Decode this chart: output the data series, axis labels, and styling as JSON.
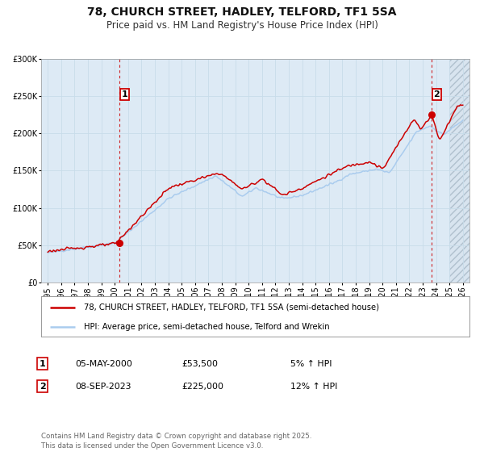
{
  "title": "78, CHURCH STREET, HADLEY, TELFORD, TF1 5SA",
  "subtitle": "Price paid vs. HM Land Registry's House Price Index (HPI)",
  "red_label": "78, CHURCH STREET, HADLEY, TELFORD, TF1 5SA (semi-detached house)",
  "blue_label": "HPI: Average price, semi-detached house, Telford and Wrekin",
  "annotation1_date": "05-MAY-2000",
  "annotation1_price": "£53,500",
  "annotation1_hpi": "5% ↑ HPI",
  "annotation2_date": "08-SEP-2023",
  "annotation2_price": "£225,000",
  "annotation2_hpi": "12% ↑ HPI",
  "footnote": "Contains HM Land Registry data © Crown copyright and database right 2025.\nThis data is licensed under the Open Government Licence v3.0.",
  "ylim": [
    0,
    300000
  ],
  "yticks": [
    0,
    50000,
    100000,
    150000,
    200000,
    250000,
    300000
  ],
  "xlim_start": 1994.5,
  "xlim_end": 2026.5,
  "xticks": [
    1995,
    1996,
    1997,
    1998,
    1999,
    2000,
    2001,
    2002,
    2003,
    2004,
    2005,
    2006,
    2007,
    2008,
    2009,
    2010,
    2011,
    2012,
    2013,
    2014,
    2015,
    2016,
    2017,
    2018,
    2019,
    2020,
    2021,
    2022,
    2023,
    2024,
    2025,
    2026
  ],
  "red_color": "#cc0000",
  "blue_color": "#aaccee",
  "grid_color": "#c8dcea",
  "background_color": "#ddeaf5",
  "hatch_color": "#c0ccd8",
  "vline_color": "#cc0000",
  "marker_color": "#cc0000",
  "annotation_box_color": "#cc0000",
  "anno1_x": 2000.35,
  "anno1_y": 53500,
  "anno2_x": 2023.67,
  "anno2_y": 225000,
  "vline1_x": 2000.35,
  "vline2_x": 2023.67,
  "hatch_start": 2025.0
}
